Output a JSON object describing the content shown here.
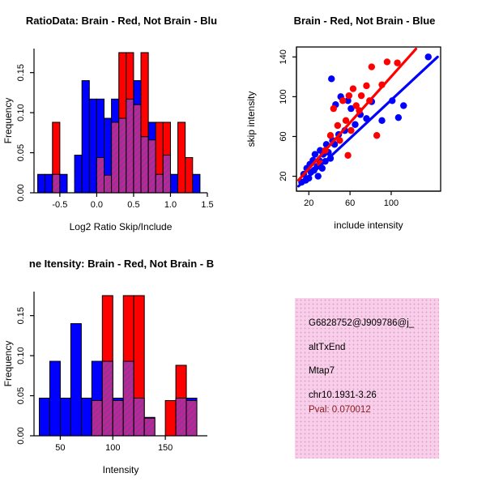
{
  "colors": {
    "red": "#ff0000",
    "blue": "#0000ff",
    "overlap_base": "#993399",
    "overlap_stripe": "#d02090",
    "axis": "#000000",
    "info_bg": "#f7cfe8",
    "info_dot": "#e59fd2",
    "pval_text": "#8b1a1a"
  },
  "info": {
    "id": "G6828752@J909786@j_",
    "event_type": "altTxEnd",
    "gene": "Mtap7",
    "location": "chr10.1931-3.26",
    "pval": "Pval: 0.070012"
  },
  "chart_data": [
    {
      "type": "bar",
      "chart_style": "overlaid histogram",
      "title": "RatioData: Brain - Red, Not Brain - Blu",
      "xlabel": "Log2 Ratio Skip/Include",
      "ylabel": "Frequency",
      "xlim": [
        -0.85,
        1.5
      ],
      "ylim": [
        0,
        0.18
      ],
      "xticks": [
        -0.5,
        0,
        0.5,
        1,
        1.5
      ],
      "xtick_labels": [
        "-0.5",
        "0.0",
        "0.5",
        "1.0",
        "1.5"
      ],
      "yticks": [
        0,
        0.05,
        0.1,
        0.15
      ],
      "ytick_labels": [
        "0.00",
        "0.05",
        "0.10",
        "0.15"
      ],
      "bin_width": 0.1,
      "series": [
        {
          "key": "blue",
          "name": "Not Brain",
          "color": "#0000ff",
          "bins": [
            [
              -0.8,
              0.023
            ],
            [
              -0.7,
              0.023
            ],
            [
              -0.6,
              0.023
            ],
            [
              -0.5,
              0.023
            ],
            [
              -0.3,
              0.047
            ],
            [
              -0.2,
              0.14
            ],
            [
              -0.1,
              0.117
            ],
            [
              0,
              0.117
            ],
            [
              0.1,
              0.093
            ],
            [
              0.2,
              0.117
            ],
            [
              0.3,
              0.093
            ],
            [
              0.4,
              0.117
            ],
            [
              0.5,
              0.14
            ],
            [
              0.6,
              0.07
            ],
            [
              0.7,
              0.088
            ],
            [
              0.8,
              0.023
            ],
            [
              0.9,
              0.047
            ],
            [
              1,
              0.023
            ],
            [
              1.3,
              0.023
            ]
          ]
        },
        {
          "key": "red",
          "name": "Brain",
          "color": "#ff0000",
          "bins": [
            [
              -0.6,
              0.088
            ],
            [
              0,
              0.044
            ],
            [
              0.1,
              0.022
            ],
            [
              0.2,
              0.088
            ],
            [
              0.3,
              0.175
            ],
            [
              0.4,
              0.175
            ],
            [
              0.5,
              0.11
            ],
            [
              0.6,
              0.175
            ],
            [
              0.7,
              0.066
            ],
            [
              0.8,
              0.088
            ],
            [
              0.9,
              0.088
            ],
            [
              1.1,
              0.088
            ],
            [
              1.2,
              0.044
            ]
          ]
        }
      ]
    },
    {
      "type": "scatter",
      "title": "Brain - Red, Not Brain - Blue",
      "xlabel": "include intensity",
      "ylabel": "skip intensity",
      "xlim": [
        8,
        148
      ],
      "ylim": [
        5,
        150
      ],
      "xticks": [
        20,
        60,
        100
      ],
      "xtick_labels": [
        "20",
        "60",
        "100"
      ],
      "yticks": [
        20,
        60,
        100,
        140
      ],
      "ytick_labels": [
        "20",
        "60",
        "100",
        "140"
      ],
      "series": [
        {
          "key": "blue",
          "name": "Not Brain",
          "color": "#0000ff",
          "points": [
            [
              13,
              14
            ],
            [
              15,
              22
            ],
            [
              17,
              16
            ],
            [
              18,
              28
            ],
            [
              20,
              18
            ],
            [
              21,
              32
            ],
            [
              22,
              24
            ],
            [
              24,
              36
            ],
            [
              25,
              26
            ],
            [
              26,
              42
            ],
            [
              28,
              30
            ],
            [
              29,
              20
            ],
            [
              30,
              36
            ],
            [
              31,
              46
            ],
            [
              33,
              28
            ],
            [
              34,
              42
            ],
            [
              36,
              35
            ],
            [
              37,
              52
            ],
            [
              39,
              44
            ],
            [
              41,
              38
            ],
            [
              42,
              118
            ],
            [
              43,
              56
            ],
            [
              45,
              52
            ],
            [
              46,
              92
            ],
            [
              49,
              62
            ],
            [
              51,
              100
            ],
            [
              55,
              66
            ],
            [
              58,
              96
            ],
            [
              61,
              88
            ],
            [
              65,
              72
            ],
            [
              70,
              82
            ],
            [
              76,
              78
            ],
            [
              81,
              95
            ],
            [
              91,
              76
            ],
            [
              101,
              96
            ],
            [
              107,
              79
            ],
            [
              112,
              91
            ],
            [
              136,
              140
            ]
          ]
        },
        {
          "key": "red",
          "name": "Brain",
          "color": "#ff0000",
          "points": [
            [
              31,
              33
            ],
            [
              36,
              46
            ],
            [
              41,
              61
            ],
            [
              44,
              88
            ],
            [
              48,
              71
            ],
            [
              50,
              56
            ],
            [
              53,
              96
            ],
            [
              56,
              76
            ],
            [
              58,
              41
            ],
            [
              59,
              101
            ],
            [
              61,
              66
            ],
            [
              63,
              108
            ],
            [
              66,
              91
            ],
            [
              69,
              86
            ],
            [
              71,
              101
            ],
            [
              76,
              111
            ],
            [
              79,
              96
            ],
            [
              81,
              130
            ],
            [
              86,
              61
            ],
            [
              91,
              112
            ],
            [
              96,
              135
            ],
            [
              106,
              134
            ]
          ]
        }
      ],
      "fit_lines": [
        {
          "key": "blue",
          "color": "#0000ff",
          "x1": 10,
          "y1": 10,
          "x2": 145,
          "y2": 140
        },
        {
          "key": "red",
          "color": "#ff0000",
          "x1": 10,
          "y1": 16,
          "x2": 124,
          "y2": 148
        }
      ]
    },
    {
      "type": "bar",
      "chart_style": "overlaid histogram",
      "title": "ne Itensity: Brain - Red, Not Brain - B",
      "xlabel": "Intensity",
      "ylabel": "Frequency",
      "xlim": [
        25,
        190
      ],
      "ylim": [
        0,
        0.18
      ],
      "xticks": [
        50,
        100,
        150
      ],
      "xtick_labels": [
        "50",
        "100",
        "150"
      ],
      "yticks": [
        0,
        0.05,
        0.1,
        0.15
      ],
      "ytick_labels": [
        "0.00",
        "0.05",
        "0.10",
        "0.15"
      ],
      "bin_width": 10,
      "series": [
        {
          "key": "blue",
          "name": "Not Brain",
          "color": "#0000ff",
          "bins": [
            [
              30,
              0.047
            ],
            [
              40,
              0.093
            ],
            [
              50,
              0.047
            ],
            [
              60,
              0.14
            ],
            [
              70,
              0.047
            ],
            [
              80,
              0.093
            ],
            [
              90,
              0.093
            ],
            [
              100,
              0.047
            ],
            [
              110,
              0.093
            ],
            [
              120,
              0.047
            ],
            [
              130,
              0.023
            ],
            [
              160,
              0.047
            ],
            [
              170,
              0.047
            ]
          ]
        },
        {
          "key": "red",
          "name": "Brain",
          "color": "#ff0000",
          "bins": [
            [
              80,
              0.044
            ],
            [
              90,
              0.175
            ],
            [
              100,
              0.044
            ],
            [
              110,
              0.175
            ],
            [
              120,
              0.175
            ],
            [
              130,
              0.022
            ],
            [
              150,
              0.044
            ],
            [
              160,
              0.088
            ],
            [
              170,
              0.044
            ]
          ]
        }
      ]
    }
  ]
}
